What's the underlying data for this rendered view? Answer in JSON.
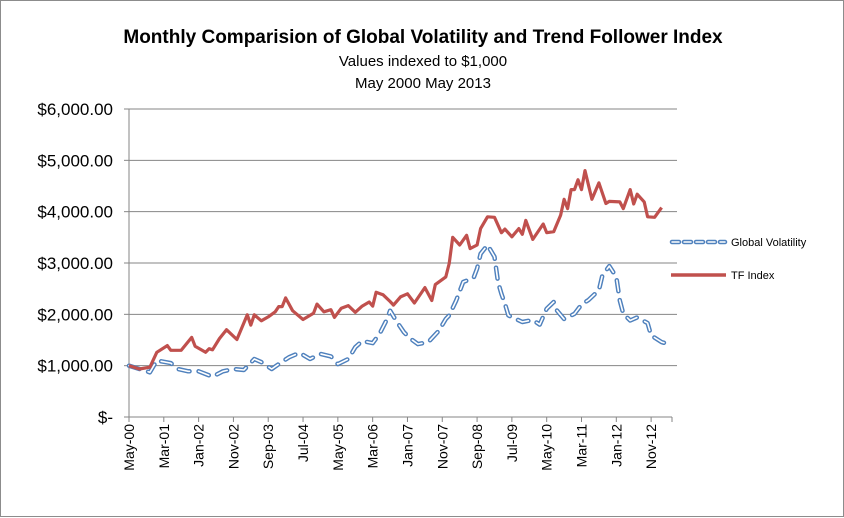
{
  "chart_data": {
    "type": "line",
    "title": "Monthly Comparision of Global Volatility and Trend Follower Index",
    "subtitle_lines": [
      "Values indexed to $1,000",
      "May 2000 May 2013"
    ],
    "xlabel": "",
    "ylabel": "",
    "ylim": [
      0,
      6000
    ],
    "y_ticks": [
      0,
      1000,
      2000,
      3000,
      4000,
      5000,
      6000
    ],
    "y_tick_labels": [
      "$-",
      "$1,000.00",
      "$2,000.00",
      "$3,000.00",
      "$4,000.00",
      "$5,000.00",
      "$6,000.00"
    ],
    "x_range": [
      "2000-05",
      "2013-05"
    ],
    "x_tick_labels": [
      "May-00",
      "Mar-01",
      "Jan-02",
      "Nov-02",
      "Sep-03",
      "Jul-04",
      "May-05",
      "Mar-06",
      "Jan-07",
      "Nov-07",
      "Sep-08",
      "Jul-09",
      "May-10",
      "Mar-11",
      "Jan-12",
      "Nov-12"
    ],
    "grid": "horizontal",
    "legend": "right",
    "series": [
      {
        "name": "Global Volatility",
        "color": "#4f81bd",
        "style": "dashed",
        "points": [
          [
            "2000-05",
            1000
          ],
          [
            "2000-08",
            935
          ],
          [
            "2000-11",
            870
          ],
          [
            "2001-01",
            1100
          ],
          [
            "2001-05",
            1050
          ],
          [
            "2001-07",
            935
          ],
          [
            "2001-10",
            890
          ],
          [
            "2002-01",
            890
          ],
          [
            "2002-05",
            785
          ],
          [
            "2002-08",
            890
          ],
          [
            "2002-11",
            935
          ],
          [
            "2003-02",
            915
          ],
          [
            "2003-05",
            1130
          ],
          [
            "2003-07",
            1070
          ],
          [
            "2003-10",
            935
          ],
          [
            "2003-12",
            1030
          ],
          [
            "2004-03",
            1165
          ],
          [
            "2004-06",
            1250
          ],
          [
            "2004-09",
            1130
          ],
          [
            "2004-12",
            1230
          ],
          [
            "2005-03",
            1180
          ],
          [
            "2005-05",
            1030
          ],
          [
            "2005-08",
            1130
          ],
          [
            "2005-10",
            1360
          ],
          [
            "2005-12",
            1480
          ],
          [
            "2006-03",
            1440
          ],
          [
            "2006-05",
            1620
          ],
          [
            "2006-07",
            1890
          ],
          [
            "2006-08",
            2070
          ],
          [
            "2006-10",
            1850
          ],
          [
            "2006-12",
            1650
          ],
          [
            "2007-02",
            1520
          ],
          [
            "2007-04",
            1420
          ],
          [
            "2007-07",
            1460
          ],
          [
            "2007-10",
            1680
          ],
          [
            "2007-12",
            1910
          ],
          [
            "2008-01",
            1980
          ],
          [
            "2008-03",
            2270
          ],
          [
            "2008-05",
            2630
          ],
          [
            "2008-08",
            2710
          ],
          [
            "2008-09",
            2890
          ],
          [
            "2008-10",
            3180
          ],
          [
            "2008-12",
            3350
          ],
          [
            "2009-02",
            3120
          ],
          [
            "2009-03",
            2630
          ],
          [
            "2009-04",
            2400
          ],
          [
            "2009-05",
            2210
          ],
          [
            "2009-06",
            1980
          ],
          [
            "2009-10",
            1850
          ],
          [
            "2010-01",
            1890
          ],
          [
            "2010-03",
            1800
          ],
          [
            "2010-05",
            2110
          ],
          [
            "2010-07",
            2240
          ],
          [
            "2010-08",
            2070
          ],
          [
            "2010-10",
            1910
          ],
          [
            "2011-01",
            2010
          ],
          [
            "2011-03",
            2190
          ],
          [
            "2011-05",
            2280
          ],
          [
            "2011-08",
            2470
          ],
          [
            "2011-09",
            2760
          ],
          [
            "2011-11",
            2940
          ],
          [
            "2012-01",
            2730
          ],
          [
            "2012-02",
            2270
          ],
          [
            "2012-03",
            2010
          ],
          [
            "2012-05",
            1880
          ],
          [
            "2012-07",
            1940
          ],
          [
            "2012-10",
            1830
          ],
          [
            "2012-11",
            1590
          ],
          [
            "2013-02",
            1460
          ],
          [
            "2013-03",
            1440
          ],
          [
            "2013-04",
            1540
          ]
        ]
      },
      {
        "name": "TF Index",
        "color": "#c0504d",
        "style": "solid",
        "points": [
          [
            "2000-05",
            1000
          ],
          [
            "2000-08",
            935
          ],
          [
            "2000-11",
            970
          ],
          [
            "2001-01",
            1260
          ],
          [
            "2001-04",
            1390
          ],
          [
            "2001-05",
            1300
          ],
          [
            "2001-08",
            1300
          ],
          [
            "2001-11",
            1550
          ],
          [
            "2001-12",
            1380
          ],
          [
            "2002-03",
            1260
          ],
          [
            "2002-04",
            1330
          ],
          [
            "2002-05",
            1310
          ],
          [
            "2002-07",
            1530
          ],
          [
            "2002-09",
            1700
          ],
          [
            "2002-12",
            1510
          ],
          [
            "2003-03",
            1990
          ],
          [
            "2003-04",
            1790
          ],
          [
            "2003-05",
            1990
          ],
          [
            "2003-07",
            1875
          ],
          [
            "2003-09",
            1950
          ],
          [
            "2003-11",
            2050
          ],
          [
            "2003-12",
            2150
          ],
          [
            "2004-01",
            2150
          ],
          [
            "2004-02",
            2320
          ],
          [
            "2004-04",
            2070
          ],
          [
            "2004-07",
            1900
          ],
          [
            "2004-10",
            2020
          ],
          [
            "2004-11",
            2200
          ],
          [
            "2005-01",
            2050
          ],
          [
            "2005-03",
            2090
          ],
          [
            "2005-04",
            1940
          ],
          [
            "2005-06",
            2120
          ],
          [
            "2005-08",
            2170
          ],
          [
            "2005-10",
            2040
          ],
          [
            "2005-12",
            2160
          ],
          [
            "2006-02",
            2240
          ],
          [
            "2006-03",
            2160
          ],
          [
            "2006-04",
            2430
          ],
          [
            "2006-06",
            2380
          ],
          [
            "2006-08",
            2250
          ],
          [
            "2006-09",
            2180
          ],
          [
            "2006-11",
            2340
          ],
          [
            "2007-01",
            2400
          ],
          [
            "2007-03",
            2220
          ],
          [
            "2007-06",
            2520
          ],
          [
            "2007-08",
            2270
          ],
          [
            "2007-09",
            2580
          ],
          [
            "2007-12",
            2730
          ],
          [
            "2008-01",
            2990
          ],
          [
            "2008-02",
            3500
          ],
          [
            "2008-04",
            3350
          ],
          [
            "2008-06",
            3540
          ],
          [
            "2008-07",
            3280
          ],
          [
            "2008-09",
            3350
          ],
          [
            "2008-10",
            3670
          ],
          [
            "2008-12",
            3900
          ],
          [
            "2009-02",
            3890
          ],
          [
            "2009-04",
            3590
          ],
          [
            "2009-05",
            3660
          ],
          [
            "2009-07",
            3510
          ],
          [
            "2009-09",
            3670
          ],
          [
            "2009-10",
            3560
          ],
          [
            "2009-11",
            3830
          ],
          [
            "2010-01",
            3460
          ],
          [
            "2010-04",
            3760
          ],
          [
            "2010-05",
            3590
          ],
          [
            "2010-07",
            3610
          ],
          [
            "2010-09",
            3930
          ],
          [
            "2010-10",
            4240
          ],
          [
            "2010-11",
            4060
          ],
          [
            "2010-12",
            4430
          ],
          [
            "2011-01",
            4430
          ],
          [
            "2011-02",
            4620
          ],
          [
            "2011-03",
            4430
          ],
          [
            "2011-04",
            4800
          ],
          [
            "2011-06",
            4240
          ],
          [
            "2011-08",
            4560
          ],
          [
            "2011-10",
            4160
          ],
          [
            "2011-11",
            4200
          ],
          [
            "2012-02",
            4190
          ],
          [
            "2012-03",
            4060
          ],
          [
            "2012-05",
            4430
          ],
          [
            "2012-06",
            4150
          ],
          [
            "2012-07",
            4340
          ],
          [
            "2012-09",
            4190
          ],
          [
            "2012-10",
            3900
          ],
          [
            "2012-12",
            3890
          ],
          [
            "2013-02",
            4080
          ]
        ]
      }
    ]
  }
}
